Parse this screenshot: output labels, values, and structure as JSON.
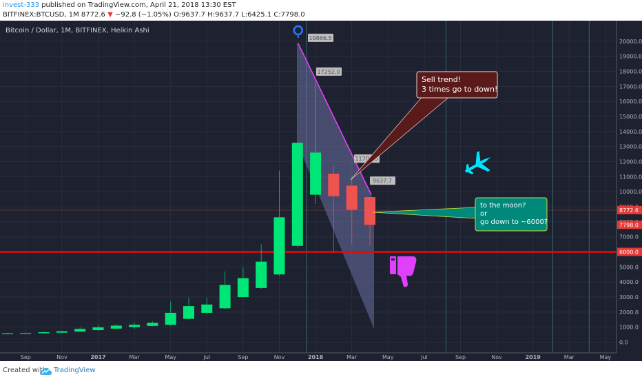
{
  "header": {
    "author": "invest-333",
    "published_text": "published on TradingView.com, April 21, 2018 13:30 EST",
    "symbol": "BITFINEX:BTCUSD, 1M",
    "change_value": "8772.6",
    "change_arrow": "▼",
    "change_delta": "−92.8 (−1.05%)",
    "ohlc": "O:9637.7 H:9637.7 L:6425.1 C:7798.0"
  },
  "chart_title": "Bitcoin / Dollar, 1M, BITFINEX, Heikin Ashi",
  "footer": {
    "created_with": "Created with",
    "brand": "TradingView"
  },
  "colors": {
    "up": "#00e676",
    "down": "#ef5350",
    "bg": "#1e2230",
    "magenta": "#e040fb",
    "cyan": "#00e5ff",
    "red_line": "#ff0000"
  },
  "chart_data": {
    "type": "candlestick",
    "series_style": "Heikin Ashi",
    "ylim": [
      -500,
      20900
    ],
    "y_ticks": [
      0,
      1000,
      2000,
      3000,
      4000,
      5000,
      6000,
      7000,
      8000,
      9000,
      10000,
      11000,
      12000,
      13000,
      14000,
      15000,
      16000,
      17000,
      18000,
      19000,
      20000
    ],
    "x_ticks": [
      "Sep",
      "Nov",
      "2017",
      "Mar",
      "May",
      "Jul",
      "Sep",
      "Nov",
      "2018",
      "Mar",
      "May",
      "Jul",
      "Sep",
      "Nov",
      "2019",
      "Mar",
      "May"
    ],
    "candles": [
      {
        "m": "2016-08",
        "o": 560,
        "h": 610,
        "l": 520,
        "c": 580,
        "dir": "up"
      },
      {
        "m": "2016-09",
        "o": 575,
        "h": 620,
        "l": 560,
        "c": 600,
        "dir": "up"
      },
      {
        "m": "2016-10",
        "o": 590,
        "h": 700,
        "l": 580,
        "c": 660,
        "dir": "up"
      },
      {
        "m": "2016-11",
        "o": 630,
        "h": 760,
        "l": 610,
        "c": 720,
        "dir": "up"
      },
      {
        "m": "2016-12",
        "o": 700,
        "h": 980,
        "l": 690,
        "c": 880,
        "dir": "up"
      },
      {
        "m": "2017-01",
        "o": 800,
        "h": 1150,
        "l": 760,
        "c": 980,
        "dir": "up"
      },
      {
        "m": "2017-02",
        "o": 900,
        "h": 1200,
        "l": 880,
        "c": 1100,
        "dir": "up"
      },
      {
        "m": "2017-03",
        "o": 1000,
        "h": 1300,
        "l": 900,
        "c": 1150,
        "dir": "up"
      },
      {
        "m": "2017-04",
        "o": 1080,
        "h": 1380,
        "l": 1060,
        "c": 1280,
        "dir": "up"
      },
      {
        "m": "2017-05",
        "o": 1150,
        "h": 2700,
        "l": 1100,
        "c": 1950,
        "dir": "up"
      },
      {
        "m": "2017-06",
        "o": 1550,
        "h": 2950,
        "l": 1500,
        "c": 2400,
        "dir": "up"
      },
      {
        "m": "2017-07",
        "o": 1950,
        "h": 2950,
        "l": 1850,
        "c": 2500,
        "dir": "up"
      },
      {
        "m": "2017-08",
        "o": 2250,
        "h": 4700,
        "l": 2200,
        "c": 3800,
        "dir": "up"
      },
      {
        "m": "2017-09",
        "o": 3000,
        "h": 4950,
        "l": 2950,
        "c": 4250,
        "dir": "up"
      },
      {
        "m": "2017-10",
        "o": 3600,
        "h": 6500,
        "l": 3550,
        "c": 5350,
        "dir": "up"
      },
      {
        "m": "2017-11",
        "o": 4500,
        "h": 11400,
        "l": 4400,
        "c": 8300,
        "dir": "up"
      },
      {
        "m": "2017-12",
        "o": 6400,
        "h": 19866.5,
        "l": 6300,
        "c": 13250,
        "dir": "up"
      },
      {
        "m": "2018-01",
        "o": 9800,
        "h": 17252,
        "l": 9200,
        "c": 12600,
        "dir": "up"
      },
      {
        "m": "2018-02",
        "o": 11200,
        "h": 11700,
        "l": 6000,
        "c": 9700,
        "dir": "down"
      },
      {
        "m": "2018-03",
        "o": 10400,
        "h": 11000,
        "l": 6500,
        "c": 8800,
        "dir": "down"
      },
      {
        "m": "2018-04",
        "o": 9637.7,
        "h": 9637.7,
        "l": 6425.1,
        "c": 7798,
        "dir": "down"
      }
    ],
    "price_labels": [
      "19866.5",
      "17252.0",
      "11700.0",
      "9637.7"
    ],
    "axis_markers": [
      {
        "value": 8772.6,
        "label": "8772.6"
      },
      {
        "value": 7798.0,
        "label": "7798.0"
      },
      {
        "value": 6000,
        "label": "6000.0"
      }
    ],
    "horizontal_line": 6000,
    "annotations": [
      {
        "text": [
          "Sell trend!",
          "3 times go to down!"
        ]
      },
      {
        "text": [
          "to the moon?",
          "or",
          "go down to ~6000?"
        ]
      }
    ]
  }
}
